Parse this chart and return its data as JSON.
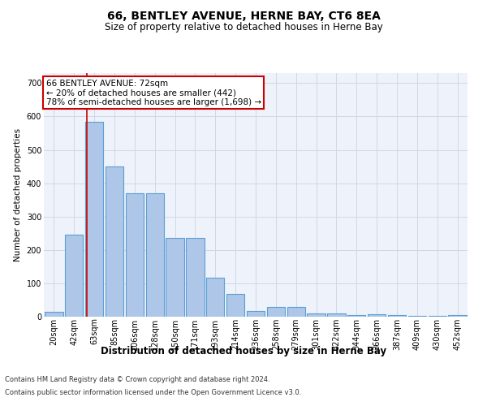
{
  "title": "66, BENTLEY AVENUE, HERNE BAY, CT6 8EA",
  "subtitle": "Size of property relative to detached houses in Herne Bay",
  "xlabel": "Distribution of detached houses by size in Herne Bay",
  "ylabel": "Number of detached properties",
  "categories": [
    "20sqm",
    "42sqm",
    "63sqm",
    "85sqm",
    "106sqm",
    "128sqm",
    "150sqm",
    "171sqm",
    "193sqm",
    "214sqm",
    "236sqm",
    "258sqm",
    "279sqm",
    "301sqm",
    "322sqm",
    "344sqm",
    "366sqm",
    "387sqm",
    "409sqm",
    "430sqm",
    "452sqm"
  ],
  "values": [
    15,
    245,
    585,
    450,
    370,
    370,
    235,
    235,
    118,
    68,
    18,
    28,
    28,
    10,
    10,
    5,
    8,
    5,
    2,
    2,
    5
  ],
  "bar_color": "#aec6e8",
  "bar_edge_color": "#5a9fd4",
  "bar_edge_width": 0.8,
  "grid_color": "#d0d8e8",
  "bg_color": "#eef2fa",
  "red_line_x": 1.65,
  "annotation_text": "66 BENTLEY AVENUE: 72sqm\n← 20% of detached houses are smaller (442)\n78% of semi-detached houses are larger (1,698) →",
  "annotation_box_color": "#ffffff",
  "annotation_box_edge_color": "#cc0000",
  "footer_line1": "Contains HM Land Registry data © Crown copyright and database right 2024.",
  "footer_line2": "Contains public sector information licensed under the Open Government Licence v3.0.",
  "ylim": [
    0,
    730
  ],
  "yticks": [
    0,
    100,
    200,
    300,
    400,
    500,
    600,
    700
  ],
  "title_fontsize": 10,
  "subtitle_fontsize": 8.5,
  "ylabel_fontsize": 7.5,
  "xlabel_fontsize": 8.5,
  "tick_fontsize": 7,
  "annot_fontsize": 7.5,
  "footer_fontsize": 6
}
